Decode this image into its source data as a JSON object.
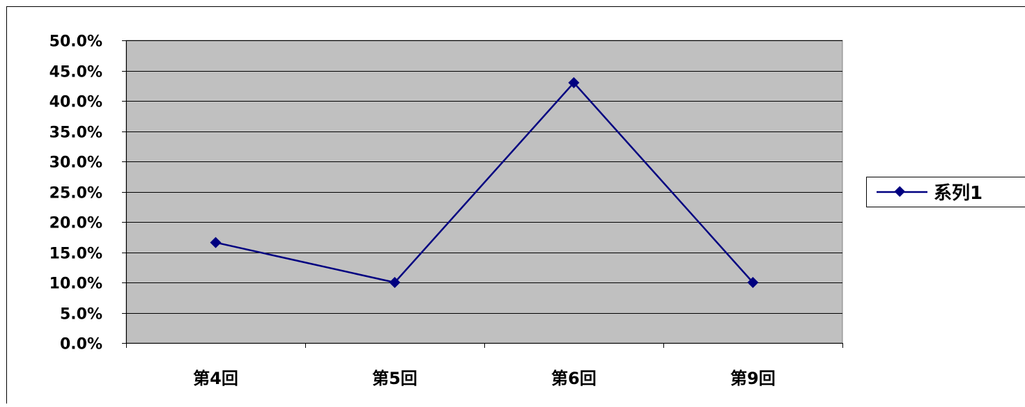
{
  "chart_data": {
    "type": "line",
    "categories": [
      "第4回",
      "第5回",
      "第6回",
      "第9回"
    ],
    "series": [
      {
        "name": "系列1",
        "values": [
          0.166,
          0.1,
          0.43,
          0.1
        ]
      }
    ],
    "ylim": [
      0,
      0.5
    ],
    "yticks": [
      0,
      0.05,
      0.1,
      0.15,
      0.2,
      0.25,
      0.3,
      0.35,
      0.4,
      0.45,
      0.5
    ],
    "ytick_labels": [
      "0.0%",
      "5.0%",
      "10.0%",
      "15.0%",
      "20.0%",
      "25.0%",
      "30.0%",
      "35.0%",
      "40.0%",
      "45.0%",
      "50.0%"
    ],
    "grid": true,
    "legend_position": "right",
    "colors": {
      "series_line": "#000080",
      "plot_background": "#c0c0c0",
      "gridline": "#000000"
    }
  }
}
